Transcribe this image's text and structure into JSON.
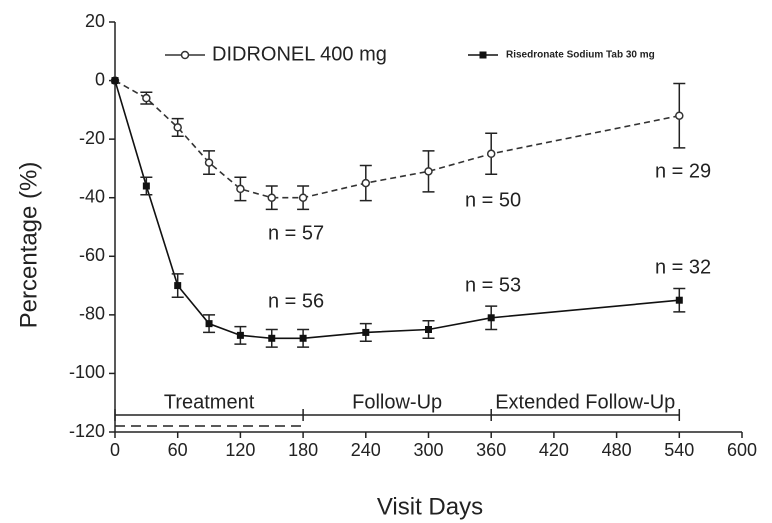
{
  "chart_data": {
    "type": "line",
    "xlabel": "Visit Days",
    "ylabel": "Percentage (%)",
    "xlim": [
      0,
      600
    ],
    "xticks": [
      0,
      60,
      120,
      180,
      240,
      300,
      360,
      420,
      480,
      540,
      600
    ],
    "ylim": [
      -120,
      20
    ],
    "yticks": [
      20,
      0,
      -20,
      -40,
      -60,
      -80,
      -100,
      -120
    ],
    "x": [
      0,
      30,
      60,
      90,
      120,
      150,
      180,
      240,
      300,
      360,
      540
    ],
    "series": [
      {
        "name": "DIDRONEL 400 mg",
        "color": "#333333",
        "marker": "open-circle",
        "dashed": true,
        "values": [
          0,
          -6,
          -16,
          -28,
          -37,
          -40,
          -40,
          -35,
          -31,
          -25,
          -12
        ],
        "errors": [
          0,
          2,
          3,
          4,
          4,
          4,
          4,
          6,
          7,
          7,
          11
        ]
      },
      {
        "name": "Risedronate Sodium Tab 30 mg",
        "color": "#111111",
        "marker": "filled-square",
        "dashed": false,
        "values": [
          0,
          -36,
          -70,
          -83,
          -87,
          -88,
          -88,
          -86,
          -85,
          -81,
          -75
        ],
        "errors": [
          0,
          3,
          4,
          3,
          3,
          3,
          3,
          3,
          3,
          4,
          4
        ]
      }
    ],
    "annotations": [
      "n = 57",
      "n = 50",
      "n = 29",
      "n = 56",
      "n = 53",
      "n = 32"
    ],
    "phases": [
      {
        "label": "Treatment",
        "start": 0,
        "end": 180
      },
      {
        "label": "Follow-Up",
        "start": 180,
        "end": 360
      },
      {
        "label": "Extended Follow-Up",
        "start": 360,
        "end": 540
      }
    ]
  }
}
